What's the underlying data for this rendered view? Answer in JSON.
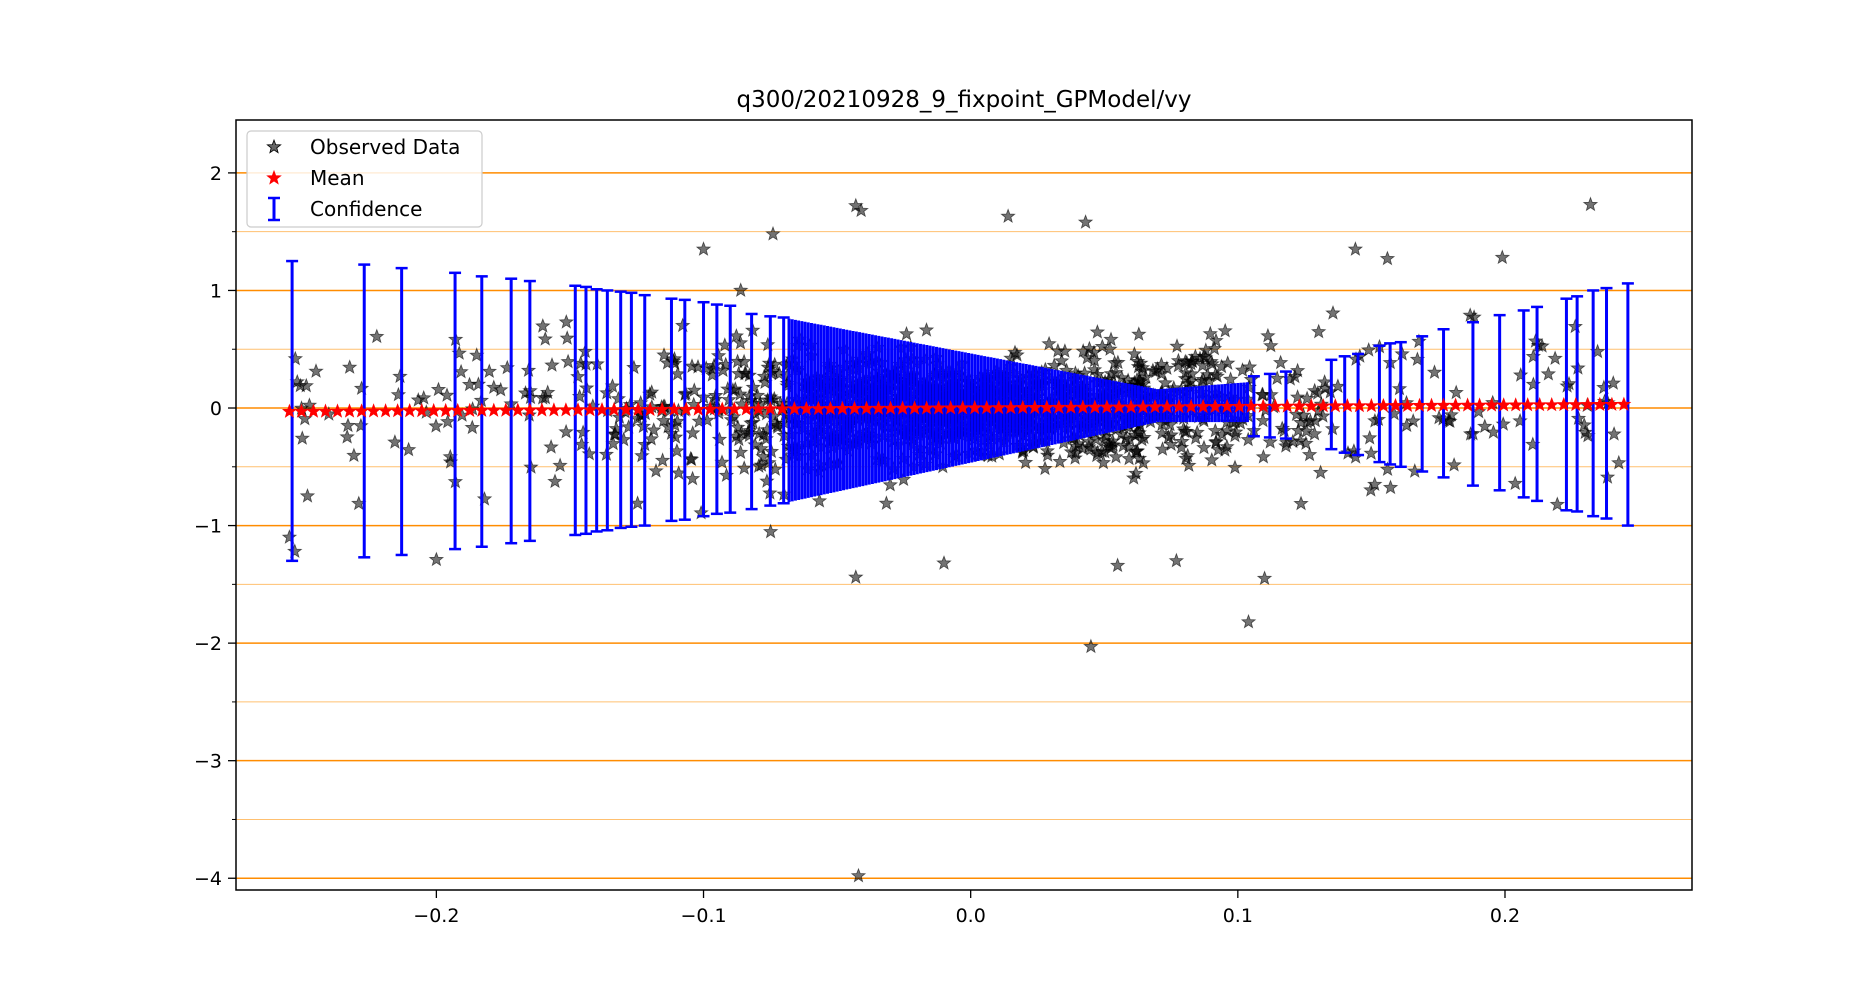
{
  "chart_data": {
    "type": "scatter",
    "title": "q300/20210928_9_fixpoint_GPModel/vy",
    "xlabel": "",
    "ylabel": "",
    "xlim": [
      -0.275,
      0.27
    ],
    "ylim": [
      -4.1,
      2.45
    ],
    "x_ticks": [
      -0.2,
      -0.1,
      0.0,
      0.1,
      0.2
    ],
    "x_tick_labels": [
      "−0.2",
      "−0.1",
      "0.0",
      "0.1",
      "0.2"
    ],
    "y_ticks": [
      2,
      1,
      0,
      -1,
      -2,
      -3,
      -4
    ],
    "y_tick_labels": [
      "2",
      "1",
      "0",
      "−1",
      "−2",
      "−3",
      "−4"
    ],
    "y_minor_ticks": [
      1.5,
      0.5,
      -0.5,
      -1.5,
      -2.5,
      -3.5
    ],
    "grid": {
      "major_color": "#ff8c00",
      "minor_color": "#ffc070",
      "axis": "y"
    },
    "legend": {
      "position": "top-left",
      "entries": [
        {
          "label": "Observed Data",
          "marker": "star",
          "color": "#000000"
        },
        {
          "label": "Mean",
          "marker": "star",
          "color": "#ff0000"
        },
        {
          "label": "Confidence",
          "marker": "errorbar",
          "color": "#0000ff"
        }
      ]
    },
    "series": [
      {
        "name": "Observed Data",
        "color": "#000000",
        "outliers": [
          {
            "x": -0.043,
            "y": 1.72
          },
          {
            "x": -0.041,
            "y": 1.68
          },
          {
            "x": 0.043,
            "y": 1.58
          },
          {
            "x": -0.074,
            "y": 1.48
          },
          {
            "x": 0.014,
            "y": 1.63
          },
          {
            "x": -0.1,
            "y": 1.35
          },
          {
            "x": 0.232,
            "y": 1.73
          },
          {
            "x": 0.199,
            "y": 1.28
          },
          {
            "x": 0.144,
            "y": 1.35
          },
          {
            "x": 0.156,
            "y": 1.27
          },
          {
            "x": -0.043,
            "y": -1.44
          },
          {
            "x": 0.045,
            "y": -2.03
          },
          {
            "x": 0.104,
            "y": -1.82
          },
          {
            "x": 0.11,
            "y": -1.45
          },
          {
            "x": -0.042,
            "y": -3.98
          },
          {
            "x": -0.255,
            "y": -1.1
          },
          {
            "x": -0.253,
            "y": -1.22
          },
          {
            "x": -0.2,
            "y": -1.29
          },
          {
            "x": -0.01,
            "y": -1.32
          },
          {
            "x": 0.077,
            "y": -1.3
          },
          {
            "x": 0.055,
            "y": -1.34
          }
        ]
      },
      {
        "name": "Mean",
        "color": "#ff0000",
        "x_min": -0.255,
        "x_max": 0.245,
        "y_start": -0.03,
        "y_end": 0.03
      },
      {
        "name": "Confidence",
        "color": "#0000ff",
        "bars": [
          {
            "x": -0.254,
            "lo": -1.3,
            "hi": 1.25
          },
          {
            "x": -0.227,
            "lo": -1.27,
            "hi": 1.22
          },
          {
            "x": -0.213,
            "lo": -1.25,
            "hi": 1.19
          },
          {
            "x": -0.193,
            "lo": -1.2,
            "hi": 1.15
          },
          {
            "x": -0.183,
            "lo": -1.18,
            "hi": 1.12
          },
          {
            "x": -0.172,
            "lo": -1.15,
            "hi": 1.1
          },
          {
            "x": -0.165,
            "lo": -1.13,
            "hi": 1.08
          },
          {
            "x": -0.148,
            "lo": -1.08,
            "hi": 1.04
          },
          {
            "x": -0.144,
            "lo": -1.07,
            "hi": 1.03
          },
          {
            "x": -0.14,
            "lo": -1.05,
            "hi": 1.01
          },
          {
            "x": -0.136,
            "lo": -1.04,
            "hi": 1.0
          },
          {
            "x": -0.131,
            "lo": -1.02,
            "hi": 0.99
          },
          {
            "x": -0.127,
            "lo": -1.01,
            "hi": 0.98
          },
          {
            "x": -0.122,
            "lo": -1.0,
            "hi": 0.96
          },
          {
            "x": -0.112,
            "lo": -0.96,
            "hi": 0.93
          },
          {
            "x": -0.107,
            "lo": -0.95,
            "hi": 0.92
          },
          {
            "x": -0.1,
            "lo": -0.92,
            "hi": 0.9
          },
          {
            "x": -0.095,
            "lo": -0.9,
            "hi": 0.88
          },
          {
            "x": -0.09,
            "lo": -0.89,
            "hi": 0.87
          },
          {
            "x": -0.082,
            "lo": -0.86,
            "hi": 0.8
          },
          {
            "x": -0.075,
            "lo": -0.83,
            "hi": 0.78
          },
          {
            "x": -0.07,
            "lo": -0.81,
            "hi": 0.77
          },
          {
            "x": 0.106,
            "lo": -0.24,
            "hi": 0.27
          },
          {
            "x": 0.112,
            "lo": -0.25,
            "hi": 0.29
          },
          {
            "x": 0.118,
            "lo": -0.26,
            "hi": 0.31
          },
          {
            "x": 0.135,
            "lo": -0.35,
            "hi": 0.41
          },
          {
            "x": 0.14,
            "lo": -0.38,
            "hi": 0.44
          },
          {
            "x": 0.145,
            "lo": -0.4,
            "hi": 0.46
          },
          {
            "x": 0.153,
            "lo": -0.46,
            "hi": 0.53
          },
          {
            "x": 0.157,
            "lo": -0.48,
            "hi": 0.55
          },
          {
            "x": 0.161,
            "lo": -0.5,
            "hi": 0.56
          },
          {
            "x": 0.169,
            "lo": -0.54,
            "hi": 0.61
          },
          {
            "x": 0.177,
            "lo": -0.59,
            "hi": 0.67
          },
          {
            "x": 0.188,
            "lo": -0.66,
            "hi": 0.73
          },
          {
            "x": 0.198,
            "lo": -0.7,
            "hi": 0.79
          },
          {
            "x": 0.207,
            "lo": -0.76,
            "hi": 0.83
          },
          {
            "x": 0.212,
            "lo": -0.79,
            "hi": 0.86
          },
          {
            "x": 0.223,
            "lo": -0.87,
            "hi": 0.93
          },
          {
            "x": 0.227,
            "lo": -0.88,
            "hi": 0.95
          },
          {
            "x": 0.233,
            "lo": -0.92,
            "hi": 1.0
          },
          {
            "x": 0.238,
            "lo": -0.94,
            "hi": 1.02
          },
          {
            "x": 0.246,
            "lo": -1.0,
            "hi": 1.06
          }
        ],
        "dense_region": {
          "x_min": -0.068,
          "x_max": 0.104,
          "lo_start": -0.8,
          "hi_start": 0.76,
          "lo_end": -0.12,
          "hi_end": 0.22,
          "narrowest_x": 0.07,
          "narrow_lo": -0.12,
          "narrow_hi": 0.16
        }
      }
    ]
  }
}
